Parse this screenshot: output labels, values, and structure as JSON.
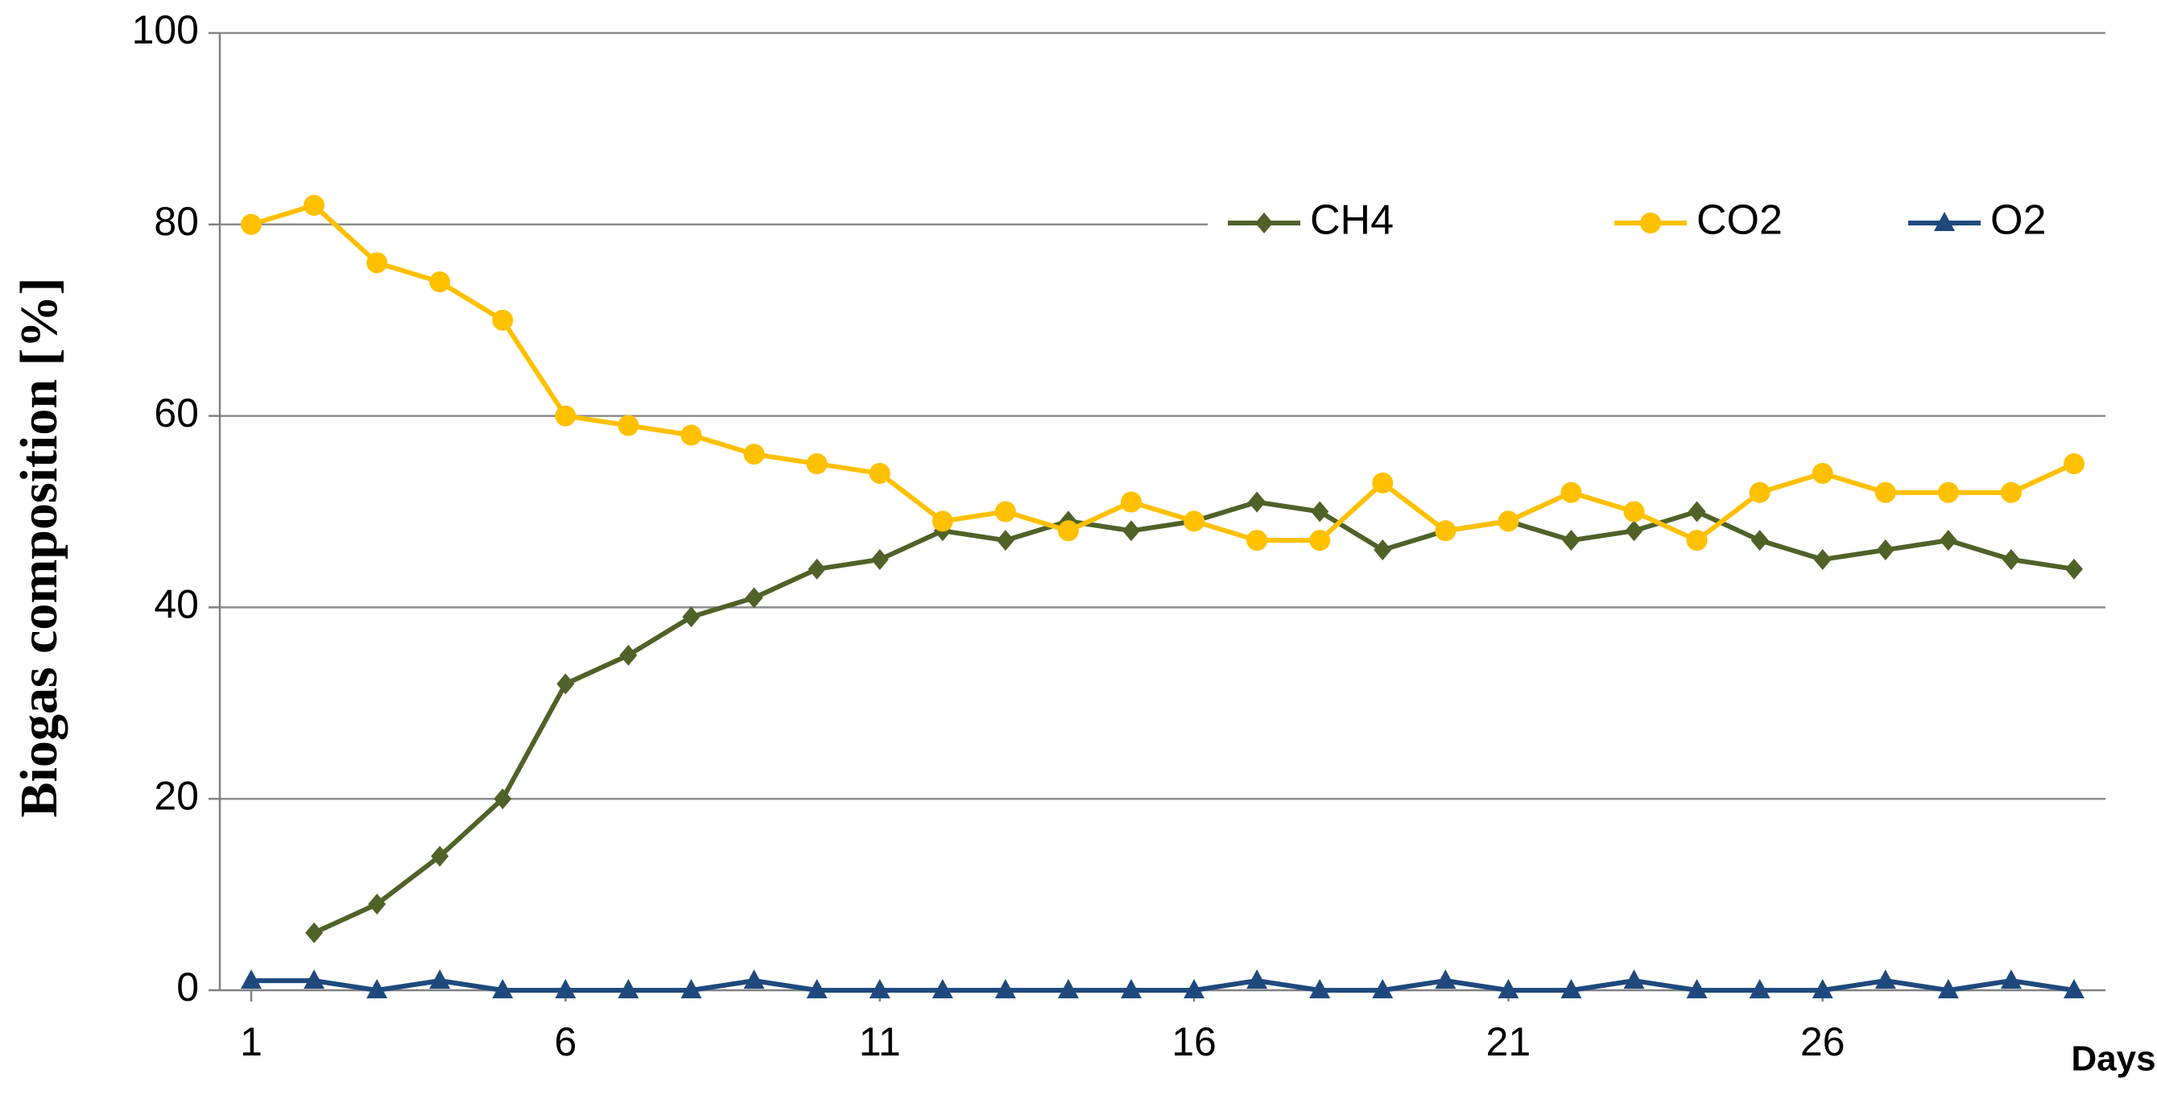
{
  "chart_data": {
    "type": "line",
    "y_label": "Biogas composition [%]",
    "x_label": "Days",
    "x": [
      1,
      2,
      3,
      4,
      5,
      6,
      7,
      8,
      9,
      10,
      11,
      12,
      13,
      14,
      15,
      16,
      17,
      18,
      19,
      20,
      21,
      22,
      23,
      24,
      25,
      26,
      27,
      28,
      29,
      30
    ],
    "series": [
      {
        "name": "CH4",
        "color": "#4f6228",
        "marker": "diamond",
        "values": [
          null,
          6,
          9,
          14,
          20,
          32,
          35,
          39,
          41,
          44,
          45,
          48,
          47,
          49,
          48,
          49,
          51,
          50,
          46,
          48,
          49,
          47,
          48,
          50,
          47,
          45,
          46,
          47,
          45,
          44
        ]
      },
      {
        "name": "CO2",
        "color": "#ffc000",
        "marker": "circle",
        "values": [
          80,
          82,
          76,
          74,
          70,
          60,
          59,
          58,
          56,
          55,
          54,
          49,
          50,
          48,
          51,
          49,
          47,
          47,
          53,
          48,
          49,
          52,
          50,
          47,
          52,
          54,
          52,
          52,
          52,
          55
        ]
      },
      {
        "name": "O2",
        "color": "#1f497d",
        "marker": "triangle",
        "values": [
          1,
          1,
          0,
          1,
          0,
          0,
          0,
          0,
          1,
          0,
          0,
          0,
          0,
          0,
          0,
          0,
          1,
          0,
          0,
          1,
          0,
          0,
          1,
          0,
          0,
          0,
          1,
          0,
          1,
          0
        ]
      }
    ],
    "xlim": [
      0.5,
      30.5
    ],
    "xticks": [
      1,
      6,
      11,
      16,
      21,
      26
    ],
    "ylim": [
      0,
      100
    ],
    "yticks": [
      0,
      20,
      40,
      60,
      80,
      100
    ],
    "grid": true,
    "legend": "top-right"
  }
}
